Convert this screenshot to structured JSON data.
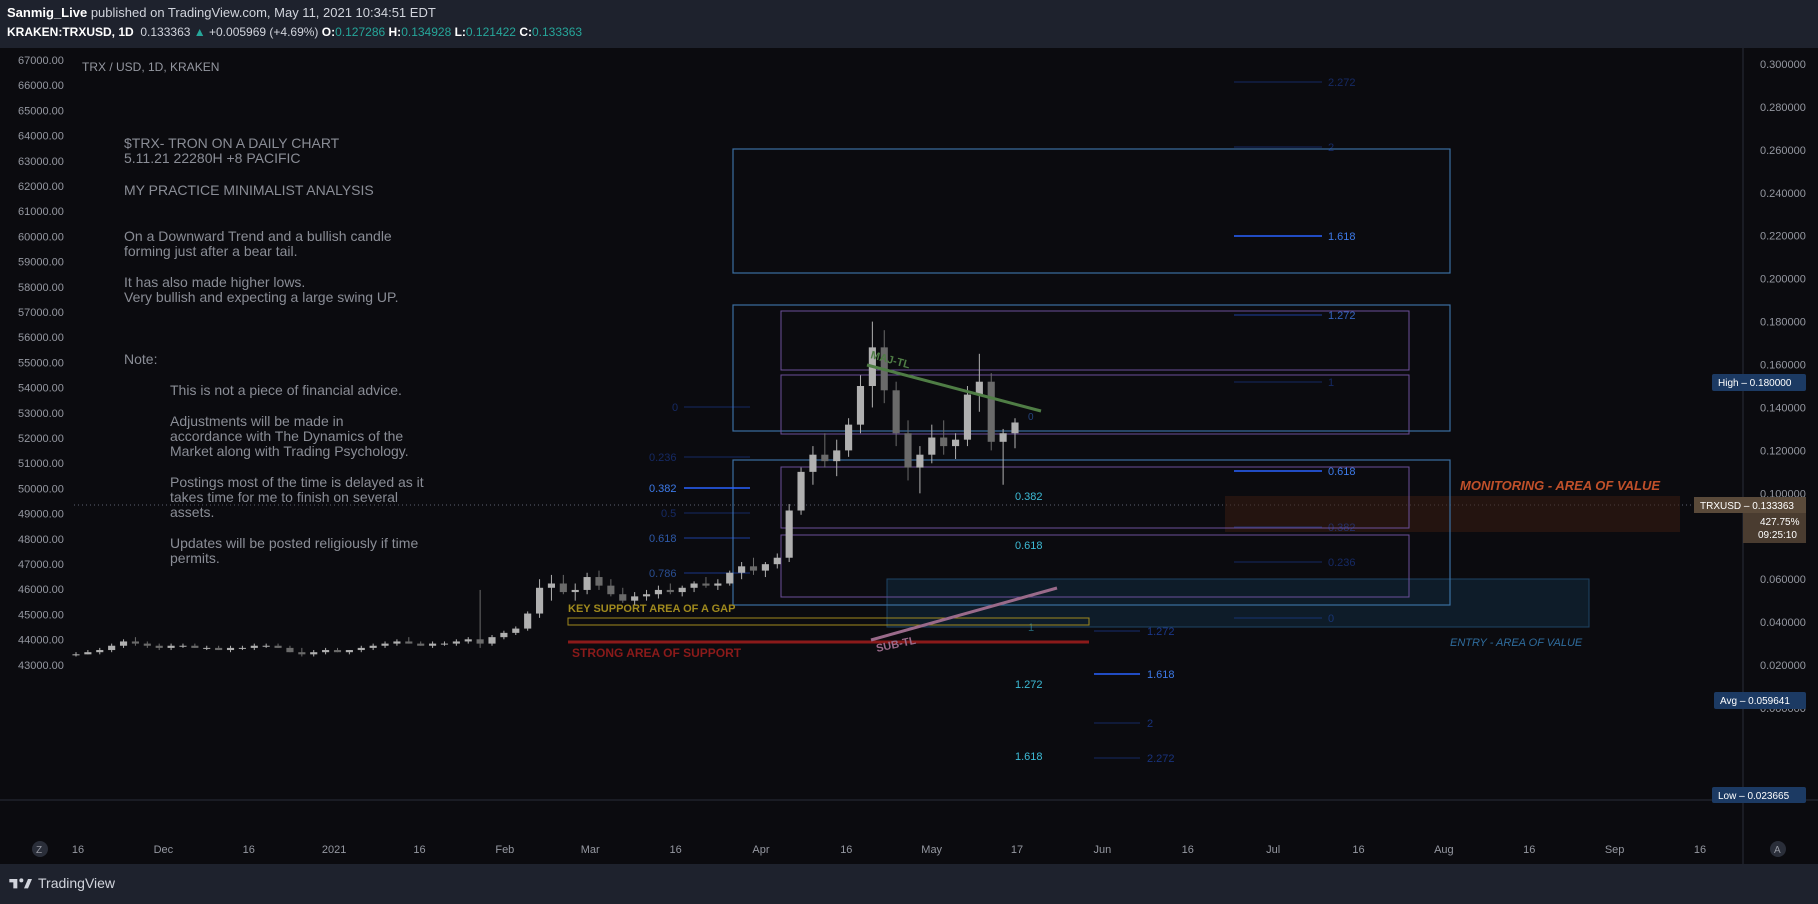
{
  "header": {
    "author": "Sanmig_Live",
    "published": " published on TradingView.com, May 11, 2021 10:34:51 EDT",
    "symbol": "KRAKEN:TRXUSD, 1D",
    "price": "0.133363",
    "change_arrow": "▲",
    "change": "+0.005969 (+4.69%)",
    "o_label": "O:",
    "o_val": "0.127286",
    "h_label": "H:",
    "h_val": "0.134928",
    "l_label": "L:",
    "l_val": "0.121422",
    "c_label": "C:",
    "c_val": "0.133363"
  },
  "chart_title": "TRX / USD, 1D, KRAKEN",
  "footer": {
    "brand": "TradingView",
    "left_btn": "Z",
    "right_btn": "A"
  },
  "notes": {
    "title_lines": [
      "$TRX- TRON ON A DAILY CHART",
      "5.11.21  22280H +8 PACIFIC"
    ],
    "subtitle": "MY PRACTICE MINIMALIST ANALYSIS",
    "para1": [
      "On a Downward Trend and a bullish candle",
      "forming just after a bear tail."
    ],
    "para2": [
      "It has also made higher lows.",
      "Very bullish and expecting a large swing UP."
    ],
    "note_label": "Note:",
    "note_items": [
      [
        "This is not a piece of financial advice."
      ],
      [
        "Adjustments will be made in",
        "accordance with The Dynamics of the",
        "Market along with Trading Psychology."
      ],
      [
        "Postings most of the time is delayed as it",
        "takes time for me to finish on several",
        "assets."
      ],
      [
        "Updates will be posted religiously if time",
        "permits."
      ]
    ]
  },
  "annotations": {
    "key_support": "KEY SUPPORT AREA OF A GAP",
    "strong_support": "STRONG AREA OF SUPPORT",
    "maj_tl": "MAJ-TL",
    "sub_tl": "SUB-TL",
    "monitoring": "MONITORING - AREA OF VALUE",
    "entry": "ENTRY - AREA OF VALUE"
  },
  "fib_levels": {
    "left": [
      "0",
      "0.236",
      "0.382",
      "0.5",
      "0.618",
      "0.786"
    ],
    "mid": [
      "0.382",
      "0.618",
      "1",
      "1.272",
      "1.618",
      "0"
    ],
    "bottom": [
      "1.272",
      "1.618",
      "2",
      "2.272"
    ],
    "right": [
      "2.272",
      "2",
      "1.618",
      "1.272",
      "1",
      "0.618",
      "0.382",
      "0.236",
      "0"
    ]
  },
  "price_badges": {
    "high": "High  –  0.180000",
    "last_symbol": "TRXUSD  –  0.133363",
    "last_pct": "427.75%",
    "last_timer": "09:25:10",
    "avg": "Avg  –  0.059641",
    "low": "Low  –  0.023665"
  },
  "colors": {
    "background": "#0b0b0f",
    "up_candle": "#9a9a9a",
    "fib_blue": "#2962ff",
    "box_blue": "#3b6fa0",
    "purple": "#8a63b8",
    "monitoring": "#c0502a",
    "entry": "#2b5f8a",
    "maj_tl": "#4f7d45",
    "sub_tl": "#9a6a8a",
    "strong_support": "#8b1a1a",
    "key_support": "#a08a1e"
  },
  "chart_data": {
    "type": "candlestick",
    "title": "TRX / USD, 1D, KRAKEN",
    "left_axis": {
      "ticks": [
        "67000.00",
        "66000.00",
        "65000.00",
        "64000.00",
        "63000.00",
        "62000.00",
        "61000.00",
        "60000.00",
        "59000.00",
        "58000.00",
        "57000.00",
        "56000.00",
        "55000.00",
        "54000.00",
        "53000.00",
        "52000.00",
        "51000.00",
        "50000.00",
        "49000.00",
        "48000.00",
        "47000.00",
        "46000.00",
        "45000.00",
        "44000.00",
        "43000.00"
      ]
    },
    "right_axis": {
      "ticks": [
        "0.300000",
        "0.280000",
        "0.260000",
        "0.240000",
        "0.220000",
        "0.200000",
        "0.180000",
        "0.160000",
        "0.140000",
        "0.120000",
        "0.100000",
        "0.080000",
        "0.060000",
        "0.040000",
        "0.020000",
        "0.000000"
      ],
      "range": [
        0,
        0.3
      ]
    },
    "x_axis": {
      "ticks": [
        "16",
        "Dec",
        "16",
        "2021",
        "16",
        "Feb",
        "Mar",
        "16",
        "Apr",
        "16",
        "May",
        "17",
        "Jun",
        "16",
        "Jul",
        "16",
        "Aug",
        "16",
        "Sep",
        "16"
      ]
    },
    "series": [
      {
        "values": [
          [
            0.025,
            0.026,
            0.024,
            0.025
          ],
          [
            0.025,
            0.027,
            0.025,
            0.026
          ],
          [
            0.026,
            0.028,
            0.025,
            0.027
          ],
          [
            0.027,
            0.03,
            0.026,
            0.029
          ],
          [
            0.029,
            0.032,
            0.028,
            0.031
          ],
          [
            0.031,
            0.033,
            0.029,
            0.03
          ],
          [
            0.03,
            0.031,
            0.028,
            0.029
          ],
          [
            0.029,
            0.03,
            0.027,
            0.028
          ],
          [
            0.028,
            0.03,
            0.027,
            0.029
          ],
          [
            0.029,
            0.03,
            0.028,
            0.029
          ],
          [
            0.029,
            0.03,
            0.028,
            0.028
          ],
          [
            0.028,
            0.029,
            0.027,
            0.028
          ],
          [
            0.028,
            0.029,
            0.027,
            0.027
          ],
          [
            0.027,
            0.029,
            0.026,
            0.028
          ],
          [
            0.028,
            0.029,
            0.027,
            0.028
          ],
          [
            0.028,
            0.03,
            0.027,
            0.029
          ],
          [
            0.029,
            0.03,
            0.028,
            0.029
          ],
          [
            0.029,
            0.03,
            0.028,
            0.028
          ],
          [
            0.028,
            0.029,
            0.026,
            0.026
          ],
          [
            0.026,
            0.028,
            0.024,
            0.025
          ],
          [
            0.025,
            0.027,
            0.024,
            0.026
          ],
          [
            0.026,
            0.028,
            0.025,
            0.027
          ],
          [
            0.027,
            0.028,
            0.026,
            0.026
          ],
          [
            0.026,
            0.027,
            0.025,
            0.027
          ],
          [
            0.027,
            0.029,
            0.026,
            0.028
          ],
          [
            0.028,
            0.03,
            0.027,
            0.029
          ],
          [
            0.029,
            0.031,
            0.028,
            0.03
          ],
          [
            0.03,
            0.032,
            0.029,
            0.031
          ],
          [
            0.031,
            0.033,
            0.03,
            0.03
          ],
          [
            0.03,
            0.031,
            0.029,
            0.029
          ],
          [
            0.029,
            0.031,
            0.028,
            0.03
          ],
          [
            0.03,
            0.031,
            0.029,
            0.03
          ],
          [
            0.03,
            0.032,
            0.029,
            0.031
          ],
          [
            0.031,
            0.033,
            0.03,
            0.032
          ],
          [
            0.032,
            0.055,
            0.028,
            0.03
          ],
          [
            0.03,
            0.034,
            0.029,
            0.033
          ],
          [
            0.033,
            0.036,
            0.032,
            0.035
          ],
          [
            0.035,
            0.038,
            0.034,
            0.037
          ],
          [
            0.037,
            0.045,
            0.036,
            0.044
          ],
          [
            0.044,
            0.06,
            0.042,
            0.056
          ],
          [
            0.056,
            0.062,
            0.05,
            0.058
          ],
          [
            0.058,
            0.062,
            0.053,
            0.054
          ],
          [
            0.054,
            0.058,
            0.05,
            0.055
          ],
          [
            0.055,
            0.063,
            0.053,
            0.061
          ],
          [
            0.061,
            0.064,
            0.055,
            0.057
          ],
          [
            0.057,
            0.06,
            0.052,
            0.053
          ],
          [
            0.053,
            0.056,
            0.049,
            0.05
          ],
          [
            0.05,
            0.054,
            0.048,
            0.052
          ],
          [
            0.052,
            0.055,
            0.05,
            0.053
          ],
          [
            0.053,
            0.057,
            0.051,
            0.055
          ],
          [
            0.055,
            0.058,
            0.053,
            0.054
          ],
          [
            0.054,
            0.057,
            0.052,
            0.056
          ],
          [
            0.056,
            0.059,
            0.054,
            0.058
          ],
          [
            0.058,
            0.061,
            0.056,
            0.057
          ],
          [
            0.057,
            0.06,
            0.055,
            0.058
          ],
          [
            0.058,
            0.064,
            0.057,
            0.063
          ],
          [
            0.063,
            0.068,
            0.06,
            0.066
          ],
          [
            0.066,
            0.07,
            0.062,
            0.064
          ],
          [
            0.064,
            0.068,
            0.061,
            0.067
          ],
          [
            0.067,
            0.072,
            0.065,
            0.07
          ],
          [
            0.07,
            0.095,
            0.068,
            0.092
          ],
          [
            0.092,
            0.112,
            0.09,
            0.11
          ],
          [
            0.11,
            0.122,
            0.104,
            0.118
          ],
          [
            0.118,
            0.128,
            0.112,
            0.115
          ],
          [
            0.115,
            0.125,
            0.108,
            0.12
          ],
          [
            0.12,
            0.135,
            0.117,
            0.132
          ],
          [
            0.132,
            0.155,
            0.128,
            0.15
          ],
          [
            0.15,
            0.18,
            0.14,
            0.168
          ],
          [
            0.168,
            0.176,
            0.142,
            0.148
          ],
          [
            0.148,
            0.152,
            0.122,
            0.128
          ],
          [
            0.128,
            0.134,
            0.106,
            0.112
          ],
          [
            0.112,
            0.122,
            0.1,
            0.118
          ],
          [
            0.118,
            0.132,
            0.114,
            0.126
          ],
          [
            0.126,
            0.134,
            0.118,
            0.122
          ],
          [
            0.122,
            0.128,
            0.116,
            0.125
          ],
          [
            0.125,
            0.15,
            0.122,
            0.146
          ],
          [
            0.146,
            0.165,
            0.138,
            0.152
          ],
          [
            0.152,
            0.156,
            0.12,
            0.124
          ],
          [
            0.124,
            0.13,
            0.104,
            0.128
          ],
          [
            0.128,
            0.135,
            0.121,
            0.133
          ]
        ]
      }
    ],
    "horizontal_lines": [
      {
        "label": "last price",
        "value": 0.133363
      }
    ]
  }
}
